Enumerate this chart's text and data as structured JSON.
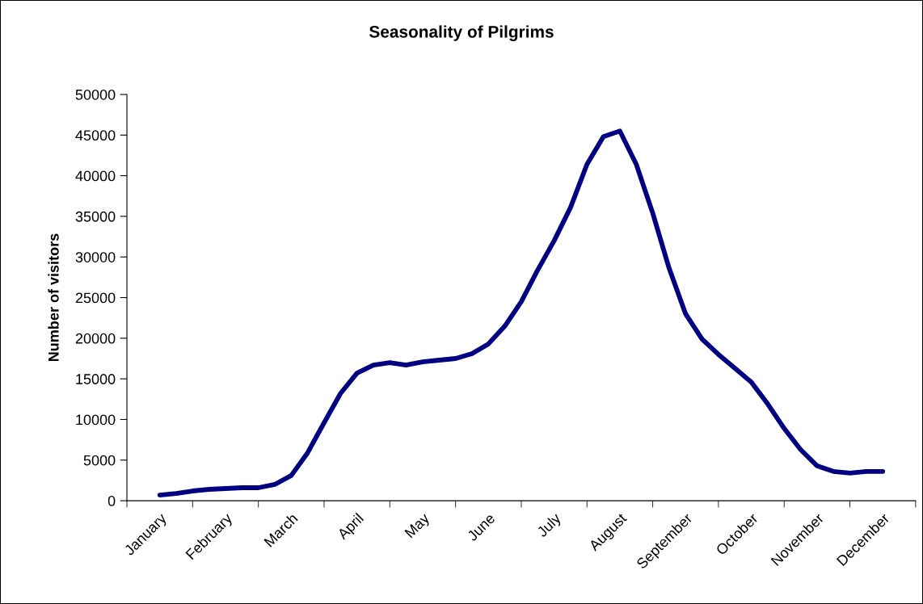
{
  "chart_data": {
    "type": "line",
    "title": "Seasonality of Pilgrims",
    "ylabel": "Number of visitors",
    "categories": [
      "January",
      null,
      null,
      null,
      "February",
      null,
      null,
      null,
      "March",
      null,
      null,
      null,
      "April",
      null,
      null,
      null,
      "May",
      null,
      null,
      null,
      "June",
      null,
      null,
      null,
      "July",
      null,
      null,
      null,
      "August",
      null,
      null,
      null,
      "September",
      null,
      null,
      null,
      "October",
      null,
      null,
      null,
      "November",
      null,
      null,
      null,
      "December"
    ],
    "series": [
      {
        "color": "#000080",
        "values": [
          700,
          900,
          1200,
          1400,
          1500,
          1600,
          1600,
          2000,
          3100,
          5900,
          9600,
          13200,
          15700,
          16700,
          17000,
          16700,
          17100,
          17300,
          17500,
          18100,
          19300,
          21500,
          24500,
          28400,
          32000,
          36100,
          41400,
          44800,
          45500,
          41400,
          35400,
          28600,
          23000,
          19900,
          18000,
          16300,
          14600,
          11900,
          8900,
          6300,
          4300,
          3600,
          3400,
          3600,
          3600
        ]
      }
    ],
    "ylim": [
      0,
      50000
    ],
    "yticks": [
      0,
      5000,
      10000,
      15000,
      20000,
      25000,
      30000,
      35000,
      40000,
      45000,
      50000
    ],
    "grid": false,
    "legend": false,
    "marker": "none",
    "line_style": "solid"
  }
}
